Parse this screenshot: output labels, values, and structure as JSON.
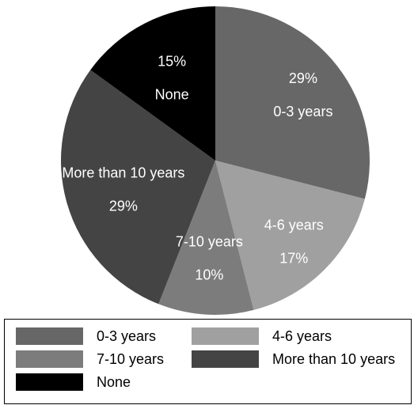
{
  "chart_data": {
    "type": "pie",
    "title": "",
    "slices": [
      {
        "label": "0-3 years",
        "value": 29,
        "value_label": "29%",
        "color": "#676767"
      },
      {
        "label": "4-6 years",
        "value": 17,
        "value_label": "17%",
        "color": "#a0a0a0"
      },
      {
        "label": "7-10 years",
        "value": 10,
        "value_label": "10%",
        "color": "#7c7c7c"
      },
      {
        "label": "More than 10 years",
        "value": 29,
        "value_label": "29%",
        "color": "#444444"
      },
      {
        "label": "None",
        "value": 15,
        "value_label": "15%",
        "color": "#000000"
      }
    ],
    "legend_position": "bottom",
    "start_angle": "12 o'clock",
    "direction": "clockwise"
  }
}
